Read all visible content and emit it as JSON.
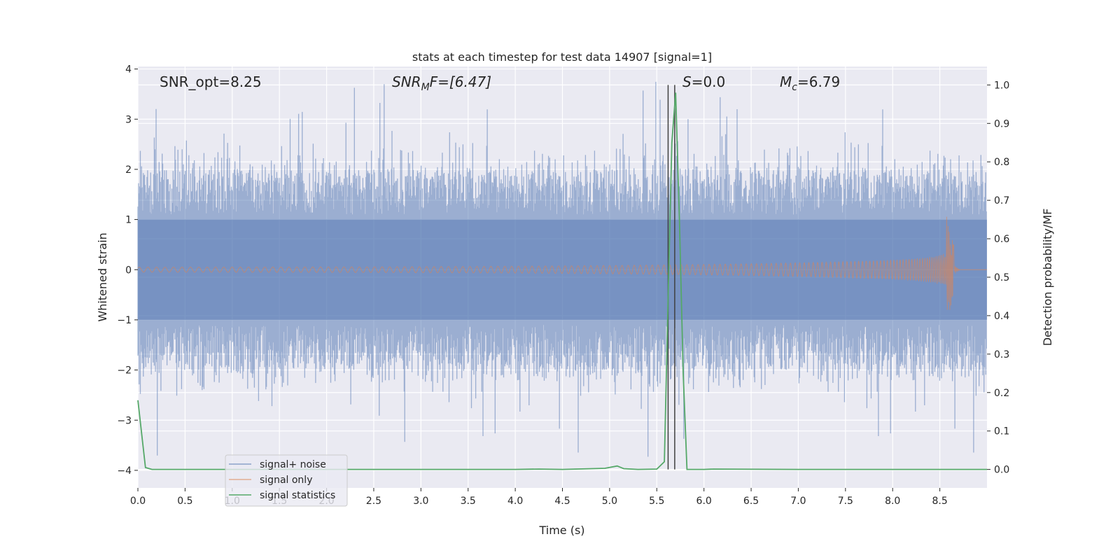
{
  "chart_data": {
    "type": "line",
    "title": "stats at each timestep for test data 14907 [signal=1]",
    "xlabel": "Time (s)",
    "ylabel_left": "Whitened strain",
    "ylabel_right": "Detection probability/MF",
    "xlim": [
      0.0,
      9.0
    ],
    "ylim_left": [
      -4.35,
      4.05
    ],
    "ylim_right": [
      -0.048,
      1.048
    ],
    "x_ticks": [
      "0.0",
      "0.5",
      "1.0",
      "1.5",
      "2.0",
      "2.5",
      "3.0",
      "3.5",
      "4.0",
      "4.5",
      "5.0",
      "5.5",
      "6.0",
      "6.5",
      "7.0",
      "7.5",
      "8.0",
      "8.5"
    ],
    "y_left_ticks": [
      "4",
      "3",
      "2",
      "1",
      "0",
      "−1",
      "−2",
      "−3",
      "−4"
    ],
    "y_right_ticks": [
      "1.0",
      "0.9",
      "0.8",
      "0.7",
      "0.6",
      "0.5",
      "0.4",
      "0.3",
      "0.2",
      "0.1",
      "0.0"
    ],
    "grid": true,
    "legend_position": "lower-left",
    "annotations": {
      "snr_opt": "SNR_opt=8.25",
      "snr_mf_main": "SNR",
      "snr_mf_sub": "M",
      "snr_mf_rest": "F=[6.47]",
      "s_value_main": "S",
      "s_value_rest": "=0.0",
      "mc_main": "M",
      "mc_sub": "c",
      "mc_rest": "=6.79"
    },
    "series": [
      {
        "name": "signal+ noise",
        "axis": "left",
        "color": "#4c72b0",
        "envelope": {
          "upper_typical": 2.0,
          "lower_typical": -2.0,
          "upper_peak": 3.75,
          "lower_peak": -4.05
        }
      },
      {
        "name": "signal only",
        "axis": "left",
        "color": "#dd8452",
        "chirp": {
          "start": 0.0,
          "merger": 8.65,
          "peak_amplitude": 1.15,
          "min_amplitude": -0.8
        }
      },
      {
        "name": "signal statistics",
        "axis": "right",
        "color": "#55a868",
        "x": [
          0.0,
          0.08,
          0.15,
          1.0,
          2.0,
          3.0,
          4.0,
          4.25,
          4.5,
          4.95,
          5.08,
          5.15,
          5.3,
          5.5,
          5.58,
          5.62,
          5.66,
          5.7,
          5.74,
          5.78,
          5.82,
          6.0,
          6.1,
          7.0,
          7.5,
          8.0,
          8.5,
          9.0
        ],
        "y": [
          0.18,
          0.005,
          0.0,
          0.0,
          0.0,
          0.0,
          0.0,
          0.001,
          0.0,
          0.003,
          0.009,
          0.002,
          0.0,
          0.001,
          0.02,
          0.45,
          0.85,
          0.98,
          0.65,
          0.25,
          0.0,
          0.0,
          0.001,
          0.0,
          0.0,
          0.0,
          0.0,
          0.0
        ]
      }
    ],
    "vertical_lines": [
      5.62,
      5.69
    ],
    "vertical_line_color": "#404040"
  }
}
